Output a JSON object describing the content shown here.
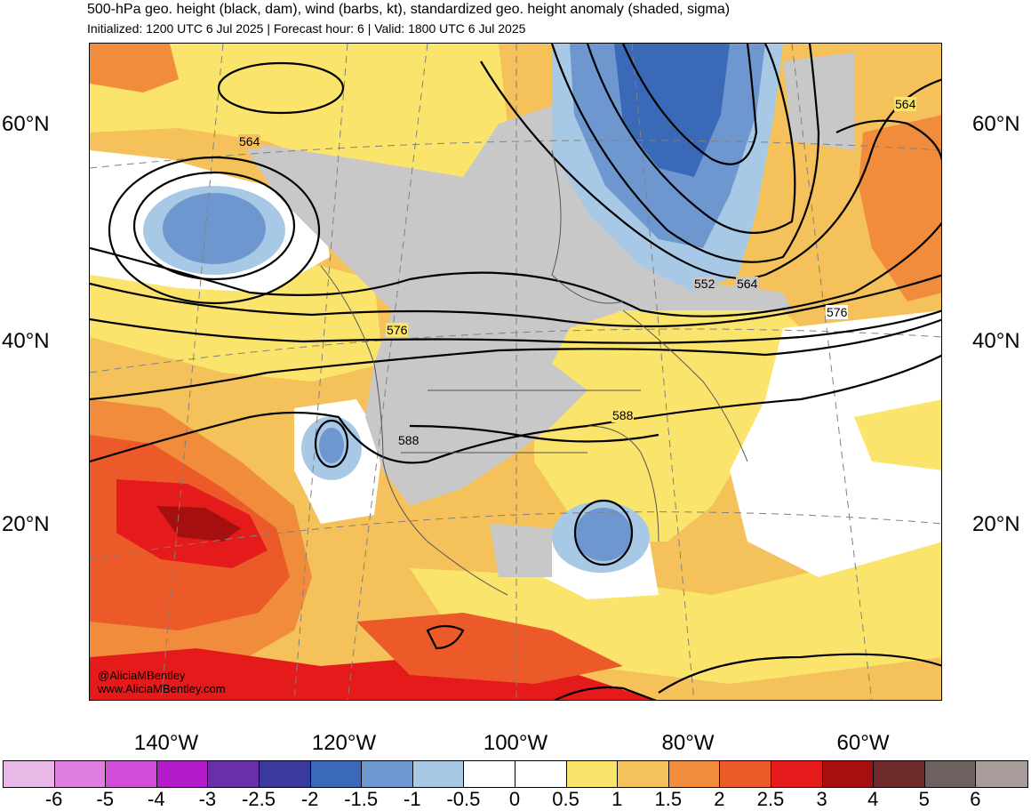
{
  "header": {
    "title": "500-hPa geo. height (black, dam), wind (barbs, kt), standardized geo. height anomaly (shaded, sigma)",
    "subtitle": "Initialized: 1200 UTC 6 Jul 2025 | Forecast hour: 6 | Valid: 1800 UTC 6 Jul 2025"
  },
  "axes": {
    "lat_labels": [
      "60°N",
      "40°N",
      "20°N"
    ],
    "lon_labels": [
      "140°W",
      "120°W",
      "100°W",
      "80°W",
      "60°W"
    ]
  },
  "contour_labels": [
    "564",
    "564",
    "552",
    "564",
    "576",
    "576",
    "588",
    "588"
  ],
  "credit": {
    "handle": "@AliciaMBentley",
    "site": "www.AliciaMBentley.com"
  },
  "colorbar": {
    "colors": [
      "#e8b8e6",
      "#e07fe0",
      "#d14fd8",
      "#b31cc8",
      "#6a2fa8",
      "#3a3a9c",
      "#3a69b8",
      "#6f97cf",
      "#a8c9e6",
      "#ffffff",
      "#ffffff",
      "#fbe46b",
      "#f5c15a",
      "#f08c3c",
      "#ec5a2a",
      "#e51b1b",
      "#a50f0f",
      "#6e2a2a",
      "#6e615f",
      "#a89c9a"
    ],
    "labels": [
      "-6",
      "-5",
      "-4",
      "-3",
      "-2.5",
      "-2",
      "-1.5",
      "-1",
      "-0.5",
      "0",
      "0.5",
      "1",
      "1.5",
      "2",
      "2.5",
      "3",
      "4",
      "5",
      "6"
    ]
  },
  "colors": {
    "positive_low": "#fbe46b",
    "positive_mid": "#f5c15a",
    "positive_high": "#f08c3c",
    "positive_strong": "#ec5a2a",
    "positive_max": "#e51b1b",
    "positive_extreme": "#a50f0f",
    "negative_low": "#a8c9e6",
    "negative_mid": "#6f97cf",
    "negative_high": "#3a69b8",
    "land_neutral": "#c8c8c8"
  }
}
